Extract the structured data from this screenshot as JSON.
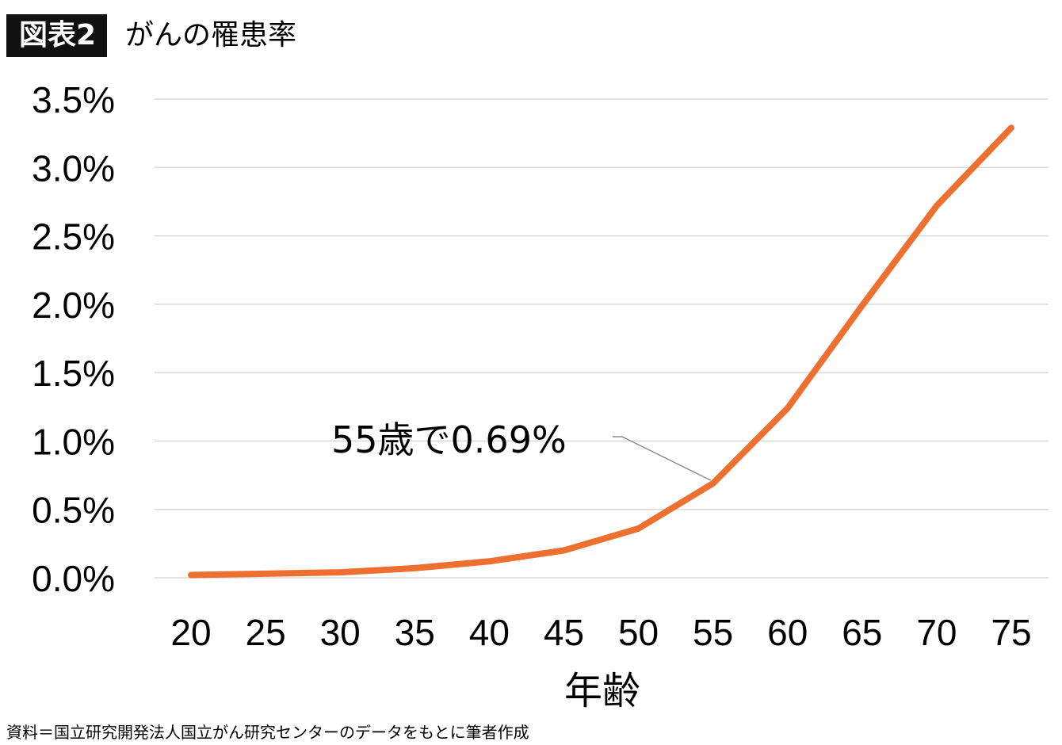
{
  "header": {
    "badge": "図表2",
    "title": "がんの罹患率"
  },
  "chart_data": {
    "type": "line",
    "title": "がんの罹患率",
    "xlabel": "年齢",
    "ylabel": "",
    "x": [
      20,
      25,
      30,
      35,
      40,
      45,
      50,
      55,
      60,
      65,
      70,
      75
    ],
    "xtick_labels": [
      "20",
      "25",
      "30",
      "35",
      "40",
      "45",
      "50",
      "55",
      "60",
      "65",
      "70",
      "75"
    ],
    "series": [
      {
        "values": [
          0.02,
          0.03,
          0.04,
          0.07,
          0.12,
          0.2,
          0.36,
          0.69,
          1.24,
          1.99,
          2.72,
          3.29
        ],
        "color": "#ED7031"
      }
    ],
    "ylim": [
      0,
      3.5
    ],
    "yticks": [
      0,
      0.5,
      1.0,
      1.5,
      2.0,
      2.5,
      3.0,
      3.5
    ],
    "ytick_labels": [
      "0.0%",
      "0.5%",
      "1.0%",
      "1.5%",
      "2.0%",
      "2.5%",
      "3.0%",
      "3.5%"
    ],
    "grid": true,
    "annotations": [
      {
        "x": 55,
        "y": 0.69,
        "text": "55歳で0.69%"
      }
    ]
  },
  "footer": {
    "source": "資料＝国立研究開発法人国立がん研究センターのデータをもとに筆者作成"
  }
}
